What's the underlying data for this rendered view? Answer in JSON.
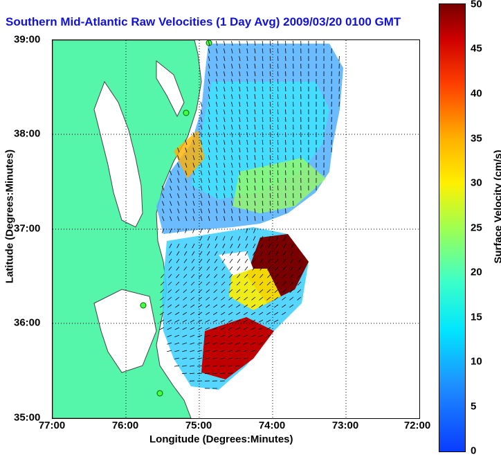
{
  "title": "Southern Mid-Atlantic Raw Velocities (1 Day Avg) 2009/03/20 0100 GMT",
  "xlabel": "Longitude (Degrees:Minutes)",
  "ylabel": "Latitude (Degrees:Minutes)",
  "x_ticks": [
    "77:00",
    "76:00",
    "75:00",
    "74:00",
    "73:00",
    "72:00"
  ],
  "y_ticks": [
    "39:00",
    "38:00",
    "37:00",
    "36:00",
    "35:00"
  ],
  "colorbar": {
    "label": "Surface Velocity (cm/s)",
    "ticks": [
      "50",
      "45",
      "40",
      "35",
      "30",
      "25",
      "20",
      "15",
      "10",
      "5",
      "0"
    ],
    "min": 0,
    "max": 50
  },
  "colors": {
    "land": "#55f5aa",
    "title": "#1010e0"
  }
}
